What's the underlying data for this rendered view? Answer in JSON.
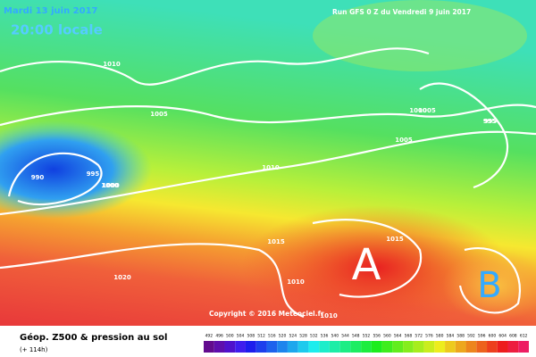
{
  "header": {
    "date": "Mardi 13 juin 2017",
    "time": "20:00 locale",
    "run": "Run GFS 0 Z du Vendredi 9 juin 2017"
  },
  "map": {
    "isobar_labels": [
      "1010",
      "1005",
      "1000",
      "995",
      "990",
      "995",
      "1000",
      "1010",
      "1015",
      "1015",
      "1020",
      "1010",
      "1010",
      "995",
      "1005",
      "1000",
      "1005"
    ],
    "high": "A",
    "low": "B",
    "copyright": "Copyright © 2016 Meteociel.fr"
  },
  "footer": {
    "title": "Géop. Z500 & pression au sol",
    "lead": "(+ 114h)",
    "scale": [
      "492",
      "496",
      "500",
      "504",
      "508",
      "512",
      "516",
      "520",
      "524",
      "528",
      "532",
      "536",
      "540",
      "544",
      "548",
      "552",
      "556",
      "560",
      "564",
      "568",
      "572",
      "576",
      "580",
      "584",
      "588",
      "592",
      "596",
      "600",
      "604",
      "608",
      "612"
    ]
  }
}
